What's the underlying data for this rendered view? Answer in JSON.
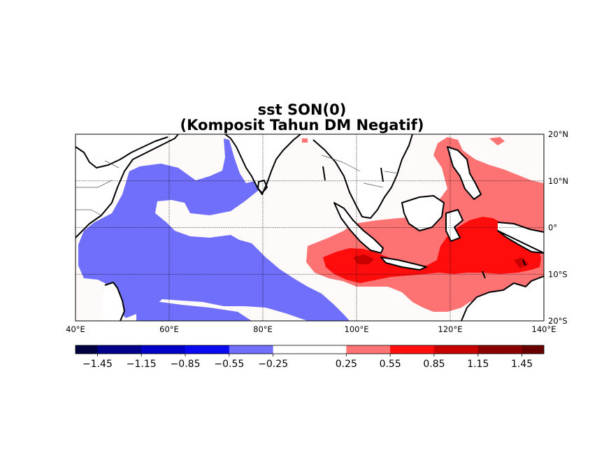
{
  "title_line1": "sst SON(0)",
  "title_line2": "(Komposit Tahun DM Negatif)",
  "map": {
    "lon_range": [
      40,
      140
    ],
    "lat_range": [
      -20,
      20
    ],
    "lon_ticks": [
      "40°E",
      "60°E",
      "80°E",
      "100°E",
      "120°E",
      "140°E"
    ],
    "lat_ticks": [
      "20°N",
      "10°N",
      "0°",
      "10°S",
      "20°S"
    ],
    "gridlines": "dotted",
    "background_color": "#fffafa",
    "land_color": "#ffffff"
  },
  "colorbar": {
    "tick_labels": [
      "−1.45",
      "−1.15",
      "−0.85",
      "−0.55",
      "−0.25",
      "0.25",
      "0.55",
      "0.85",
      "1.15",
      "1.45"
    ],
    "colors": [
      "#000040",
      "#00008a",
      "#0000c8",
      "#0a0af2",
      "#6f6ffb",
      "#ffffff",
      "#fd7272",
      "#ff0d0d",
      "#c80000",
      "#8a0000",
      "#680000"
    ],
    "levels": [
      -1.45,
      -1.15,
      -0.85,
      -0.55,
      -0.25,
      0.25,
      0.55,
      0.85,
      1.15,
      1.45
    ]
  }
}
